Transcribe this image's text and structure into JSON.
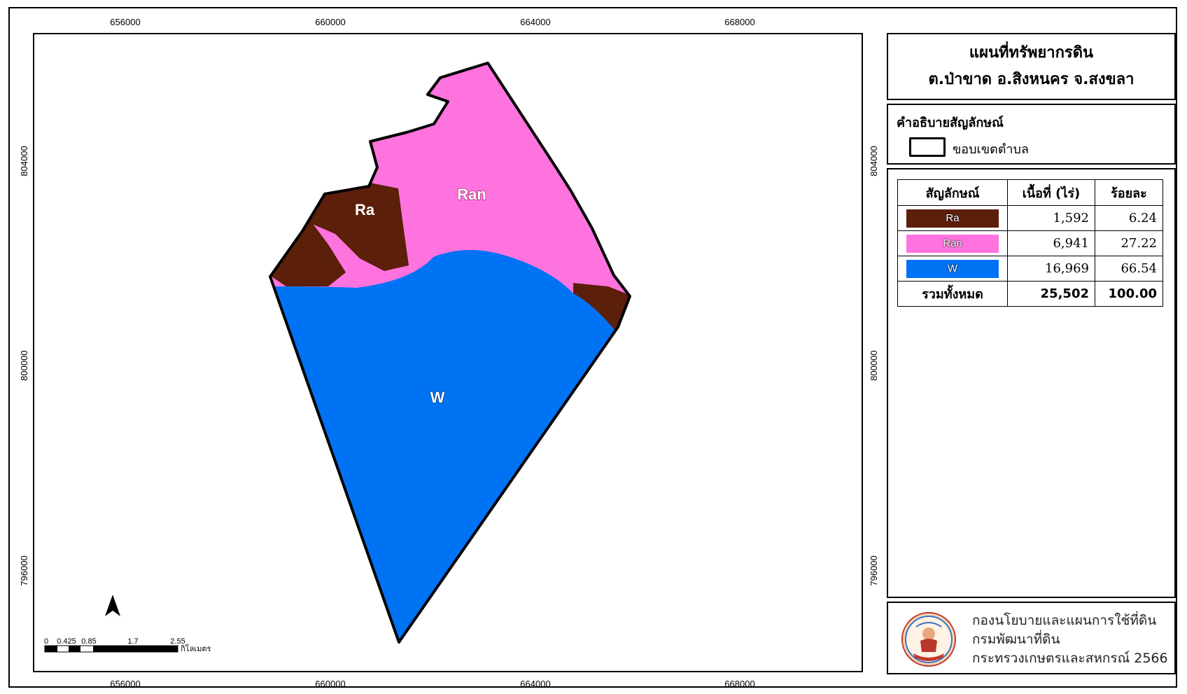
{
  "map": {
    "x_ticks": [
      "656000",
      "660000",
      "664000",
      "668000"
    ],
    "y_ticks": [
      "804000",
      "800000",
      "796000"
    ],
    "units": [
      {
        "code": "Ra",
        "color": "#5c1f0a"
      },
      {
        "code": "Ran",
        "color": "#ff73df"
      },
      {
        "code": "W",
        "color": "#0073f5"
      }
    ],
    "boundary_color": "#000000",
    "north_arrow_label": "N",
    "scale_bar": {
      "tick_labels": [
        "0",
        "0.425",
        "0.85",
        "1.7",
        "2.55"
      ],
      "unit": "กิโลเมตร"
    }
  },
  "title": {
    "line1": "แผนที่ทรัพยากรดิน",
    "line2": "ต.ป่าขาด อ.สิงหนคร จ.สงขลา"
  },
  "legend": {
    "heading": "คำอธิบายสัญลักษณ์",
    "boundary_label": "ขอบเขตตำบล"
  },
  "area_table": {
    "headers": [
      "สัญลักษณ์",
      "เนื้อที่ (ไร่)",
      "ร้อยละ"
    ],
    "rows": [
      {
        "code": "Ra",
        "area": "1,592",
        "percent": "6.24",
        "color": "#5c1f0a"
      },
      {
        "code": "Ran",
        "area": "6,941",
        "percent": "27.22",
        "color": "#ff73df"
      },
      {
        "code": "W",
        "area": "16,969",
        "percent": "66.54",
        "color": "#0073f5"
      }
    ],
    "total": {
      "label": "รวมทั้งหมด",
      "area": "25,502",
      "percent": "100.00"
    }
  },
  "credit": {
    "line1": "กองนโยบายและแผนการใช้ที่ดิน",
    "line2": "กรมพัฒนาที่ดิน",
    "line3": "กระทรวงเกษตรและสหกรณ์ 2566"
  }
}
